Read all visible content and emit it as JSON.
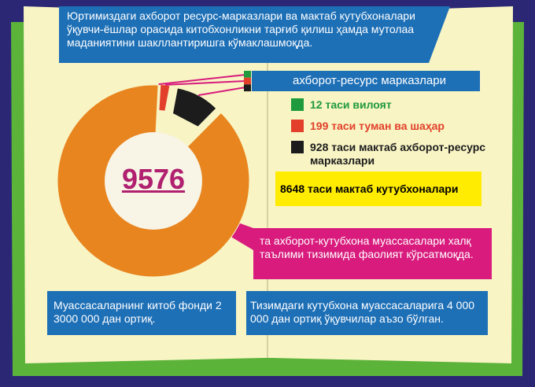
{
  "chart_data": {
    "type": "pie",
    "title": "Юртимиздаги ахборот ресурс-марказлари ва мактаб кутубхоналари ўқувчи-ёшлар орасида китобхонликни тарғиб қилиш ҳамда мутолаа маданиятини шакллантиришга кўмаклашмоқда.",
    "legend_title": "ахборот-ресурс марказлари",
    "values": [
      12,
      199,
      928,
      8648
    ],
    "value_labels": [
      "12 таси вилоят",
      "199 таси туман ва шаҳар",
      "928 таси мактаб ахборот-ресурс марказлари",
      "8648 таси мактаб кутубхоналари"
    ],
    "colors": [
      "#1f9a3c",
      "#e2402a",
      "#1c1c1c",
      "#e8851f"
    ],
    "total": 9576,
    "annotations": [
      "та ахборот-кутубхона муассасалари халқ таълими тизимида фаолият кўрсатмоқда.",
      "Муассасаларнинг китоб фонди 2 3000 000 дан ортиқ.",
      "Тизимдаги кутубхона муассасаларига 4 000 000 дан ортиқ ўқувчилар аъзо бўлган."
    ]
  }
}
